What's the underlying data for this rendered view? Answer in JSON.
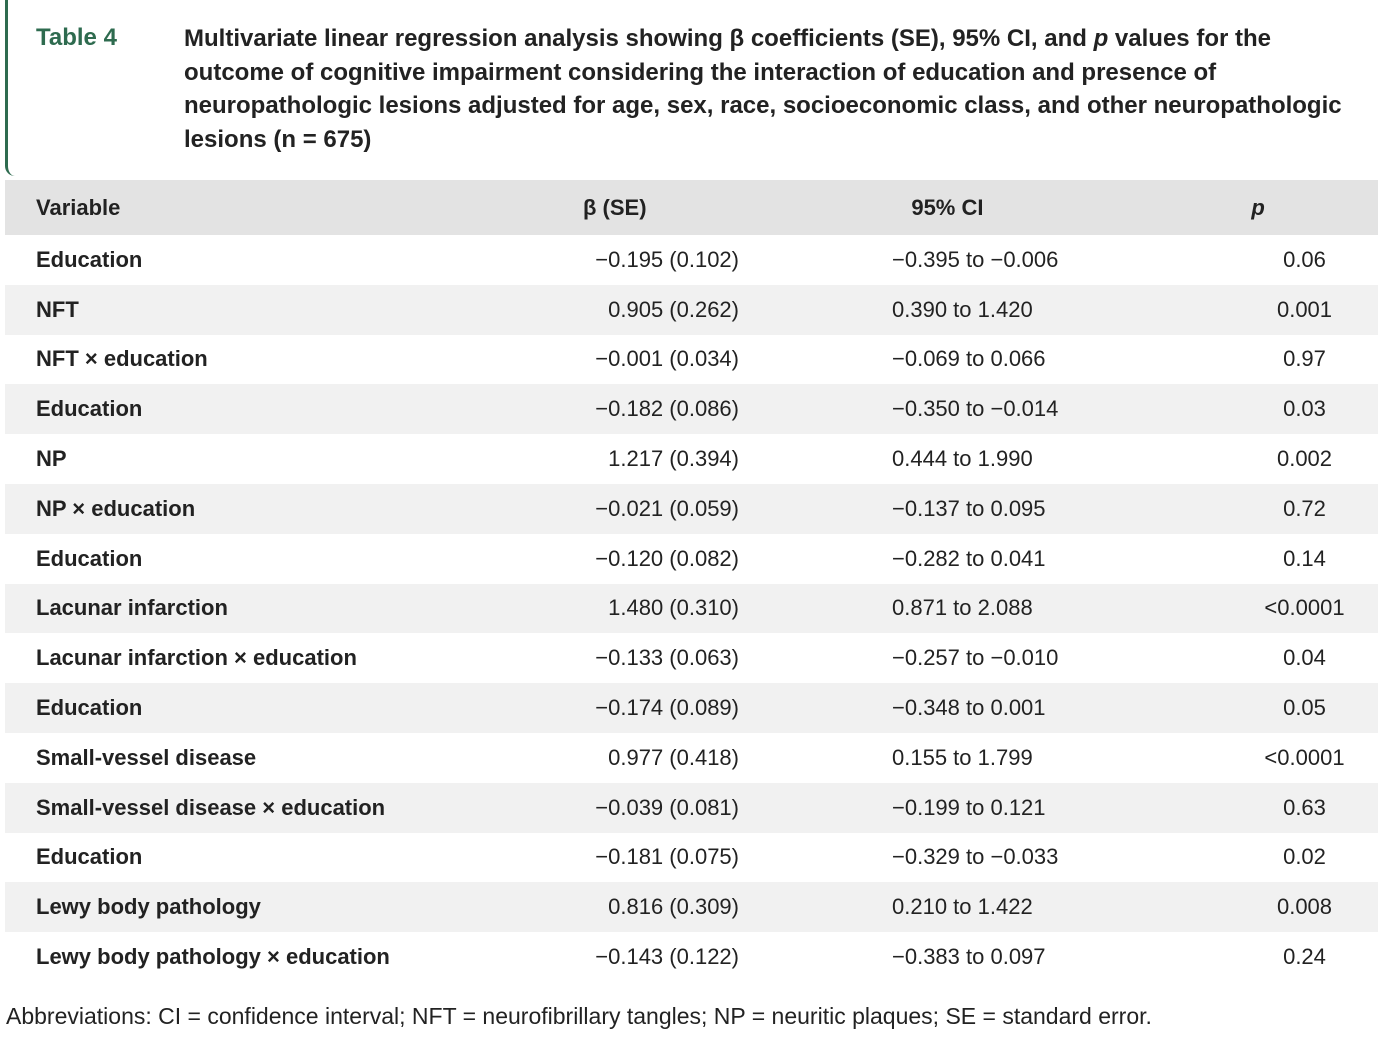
{
  "header": {
    "label": "Table 4",
    "title": [
      "Multivariate linear regression analysis showing β coefficients (SE), 95% CI, and ",
      "p",
      " values for the outcome of cognitive impairment considering the interaction of education and presence of neuropathologic lesions adjusted for age, sex, race, socioeconomic class, and other neuropathologic lesions (n = 675)"
    ]
  },
  "table": {
    "columns": [
      "Variable",
      "β (SE)",
      "95% CI",
      "p"
    ],
    "rows": [
      [
        "Education",
        "−0.195 (0.102)",
        "−0.395 to −0.006",
        "0.06"
      ],
      [
        "NFT",
        "0.905 (0.262)",
        "0.390 to 1.420",
        "0.001"
      ],
      [
        "NFT × education",
        "−0.001 (0.034)",
        "−0.069 to 0.066",
        "0.97"
      ],
      [
        "Education",
        "−0.182 (0.086)",
        "−0.350 to −0.014",
        "0.03"
      ],
      [
        "NP",
        "1.217 (0.394)",
        "0.444 to 1.990",
        "0.002"
      ],
      [
        "NP × education",
        "−0.021 (0.059)",
        "−0.137 to 0.095",
        "0.72"
      ],
      [
        "Education",
        "−0.120 (0.082)",
        "−0.282 to 0.041",
        "0.14"
      ],
      [
        "Lacunar infarction",
        "1.480 (0.310)",
        "0.871 to 2.088",
        "<0.0001"
      ],
      [
        "Lacunar infarction × education",
        "−0.133 (0.063)",
        "−0.257 to −0.010",
        "0.04"
      ],
      [
        "Education",
        "−0.174 (0.089)",
        "−0.348 to 0.001",
        "0.05"
      ],
      [
        "Small-vessel disease",
        "0.977 (0.418)",
        "0.155 to 1.799",
        "<0.0001"
      ],
      [
        "Small-vessel disease × education",
        "−0.039 (0.081)",
        "−0.199 to 0.121",
        "0.63"
      ],
      [
        "Education",
        "−0.181 (0.075)",
        "−0.329 to −0.033",
        "0.02"
      ],
      [
        "Lewy body pathology",
        "0.816 (0.309)",
        "0.210 to 1.422",
        "0.008"
      ],
      [
        "Lewy body pathology × education",
        "−0.143 (0.122)",
        "−0.383 to 0.097",
        "0.24"
      ]
    ]
  },
  "footer": "Abbreviations: CI = confidence interval; NFT = neurofibrillary tangles; NP = neuritic plaques; SE = standard error."
}
